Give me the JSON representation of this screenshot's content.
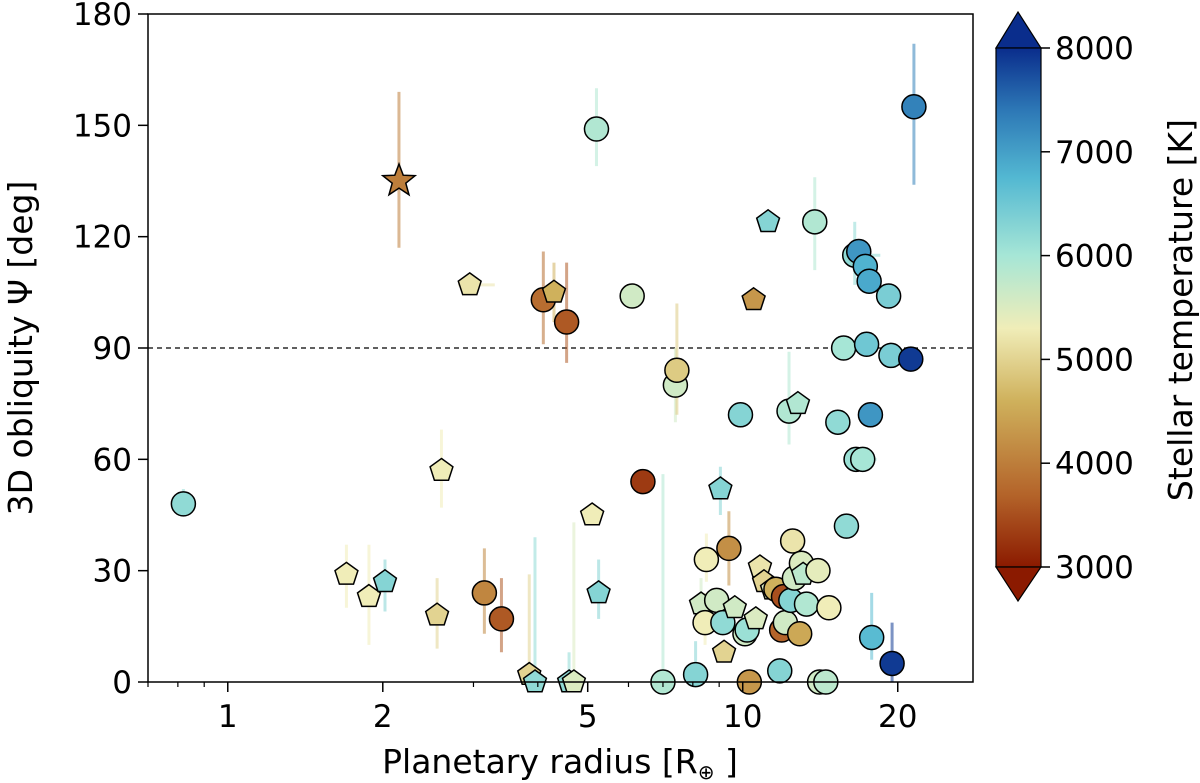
{
  "chart_data": {
    "type": "scatter",
    "title": "",
    "xlabel": "Planetary radius [R⊕]",
    "ylabel": "3D obliquity Ψ [deg]",
    "xscale": "log",
    "xlim": [
      0.7,
      28
    ],
    "ylim": [
      0,
      180
    ],
    "x_ticks": [
      1,
      2,
      5,
      10,
      20
    ],
    "x_tick_labels": [
      "1",
      "2",
      "5",
      "10",
      "20"
    ],
    "y_ticks": [
      0,
      30,
      60,
      90,
      120,
      150,
      180
    ],
    "y_tick_labels": [
      "0",
      "30",
      "60",
      "90",
      "120",
      "150",
      "180"
    ],
    "reference_line": {
      "y": 90,
      "style": "dashed"
    },
    "colorbar": {
      "label": "Stellar temperature [K]",
      "min": 3000,
      "max": 8000,
      "ticks": [
        3000,
        4000,
        5000,
        6000,
        7000,
        8000
      ],
      "tick_labels": [
        "3000",
        "4000",
        "5000",
        "6000",
        "7000",
        "8000"
      ],
      "colors": [
        "#8b1a00",
        "#b4642a",
        "#cfb15c",
        "#f0edb8",
        "#a6e6d6",
        "#53b8d2",
        "#2d78b6",
        "#0a2d8c"
      ]
    },
    "marker_legend": {
      "circle": "circle",
      "pentagon": "pentagon",
      "star": "star"
    },
    "points": [
      {
        "x": 0.82,
        "y": 48,
        "t": 6200,
        "m": "circle",
        "ylo": 45,
        "yhi": 52
      },
      {
        "x": 2.15,
        "y": 135,
        "t": 4000,
        "m": "star",
        "ylo": 117,
        "yhi": 159
      },
      {
        "x": 5.2,
        "y": 149,
        "t": 5900,
        "m": "circle",
        "ylo": 139,
        "yhi": 160
      },
      {
        "x": 2.95,
        "y": 107,
        "t": 5200,
        "m": "pentagon",
        "xlo": 2.8,
        "xhi": 3.3
      },
      {
        "x": 4.1,
        "y": 103,
        "t": 3800,
        "m": "circle",
        "ylo": 91,
        "yhi": 116
      },
      {
        "x": 4.3,
        "y": 105,
        "t": 4600,
        "m": "pentagon",
        "ylo": 97,
        "yhi": 113
      },
      {
        "x": 4.55,
        "y": 97,
        "t": 3600,
        "m": "circle",
        "ylo": 86,
        "yhi": 113
      },
      {
        "x": 6.1,
        "y": 104,
        "t": 5600,
        "m": "circle"
      },
      {
        "x": 10.5,
        "y": 103,
        "t": 4300,
        "m": "pentagon"
      },
      {
        "x": 7.4,
        "y": 80,
        "t": 5600,
        "m": "circle",
        "ylo": 70,
        "yhi": 90
      },
      {
        "x": 7.45,
        "y": 84,
        "t": 4900,
        "m": "circle",
        "ylo": 72,
        "yhi": 102
      },
      {
        "x": 2.6,
        "y": 57,
        "t": 5300,
        "m": "pentagon",
        "ylo": 47,
        "yhi": 68
      },
      {
        "x": 6.4,
        "y": 54,
        "t": 3300,
        "m": "circle"
      },
      {
        "x": 5.1,
        "y": 45,
        "t": 5300,
        "m": "pentagon"
      },
      {
        "x": 1.7,
        "y": 29,
        "t": 5300,
        "m": "pentagon",
        "ylo": 20,
        "yhi": 37
      },
      {
        "x": 1.88,
        "y": 23,
        "t": 5300,
        "m": "pentagon",
        "ylo": 10,
        "yhi": 37
      },
      {
        "x": 2.02,
        "y": 27,
        "t": 6300,
        "m": "pentagon",
        "ylo": 19,
        "yhi": 33
      },
      {
        "x": 2.55,
        "y": 18,
        "t": 5000,
        "m": "pentagon",
        "ylo": 9,
        "yhi": 28
      },
      {
        "x": 3.15,
        "y": 24,
        "t": 4100,
        "m": "circle",
        "ylo": 13,
        "yhi": 36
      },
      {
        "x": 3.4,
        "y": 17,
        "t": 3600,
        "m": "circle",
        "ylo": 8,
        "yhi": 28
      },
      {
        "x": 3.85,
        "y": 2,
        "t": 5000,
        "m": "pentagon",
        "ylo": 0,
        "yhi": 29
      },
      {
        "x": 3.95,
        "y": 0,
        "t": 6200,
        "m": "pentagon",
        "ylo": 0,
        "yhi": 39
      },
      {
        "x": 4.6,
        "y": 0,
        "t": 6200,
        "m": "pentagon",
        "ylo": 0,
        "yhi": 8
      },
      {
        "x": 4.7,
        "y": 0,
        "t": 5500,
        "m": "pentagon",
        "ylo": 0,
        "yhi": 43
      },
      {
        "x": 5.25,
        "y": 24,
        "t": 6300,
        "m": "pentagon",
        "ylo": 17,
        "yhi": 33
      },
      {
        "x": 7.0,
        "y": 0,
        "t": 5900,
        "m": "circle",
        "ylo": 0,
        "yhi": 56
      },
      {
        "x": 8.1,
        "y": 2,
        "t": 6300,
        "m": "circle",
        "ylo": 0,
        "yhi": 11
      },
      {
        "x": 8.3,
        "y": 21,
        "t": 5600,
        "m": "pentagon",
        "ylo": 14,
        "yhi": 28
      },
      {
        "x": 8.45,
        "y": 16,
        "t": 5300,
        "m": "circle",
        "ylo": 10,
        "yhi": 24
      },
      {
        "x": 8.5,
        "y": 33,
        "t": 5300,
        "m": "circle",
        "ylo": 27,
        "yhi": 40
      },
      {
        "x": 8.9,
        "y": 22,
        "t": 5600,
        "m": "circle"
      },
      {
        "x": 9.05,
        "y": 52,
        "t": 6300,
        "m": "pentagon",
        "ylo": 45,
        "yhi": 58
      },
      {
        "x": 9.15,
        "y": 16,
        "t": 6200,
        "m": "circle"
      },
      {
        "x": 9.2,
        "y": 8,
        "t": 5000,
        "m": "pentagon"
      },
      {
        "x": 9.4,
        "y": 36,
        "t": 4200,
        "m": "circle",
        "ylo": 26,
        "yhi": 46
      },
      {
        "x": 9.65,
        "y": 20,
        "t": 5600,
        "m": "pentagon"
      },
      {
        "x": 9.9,
        "y": 72,
        "t": 6300,
        "m": "circle"
      },
      {
        "x": 10.1,
        "y": 13,
        "t": 5600,
        "m": "circle"
      },
      {
        "x": 10.2,
        "y": 14,
        "t": 6100,
        "m": "circle"
      },
      {
        "x": 10.3,
        "y": 0,
        "t": 4300,
        "m": "circle"
      },
      {
        "x": 10.6,
        "y": 17,
        "t": 5500,
        "m": "pentagon"
      },
      {
        "x": 10.8,
        "y": 31,
        "t": 5200,
        "m": "pentagon"
      },
      {
        "x": 11.0,
        "y": 27,
        "t": 5000,
        "m": "pentagon"
      },
      {
        "x": 11.2,
        "y": 124,
        "t": 6300,
        "m": "pentagon"
      },
      {
        "x": 11.4,
        "y": 25,
        "t": 5500,
        "m": "pentagon"
      },
      {
        "x": 11.6,
        "y": 25,
        "t": 4600,
        "m": "circle"
      },
      {
        "x": 11.8,
        "y": 3,
        "t": 6300,
        "m": "circle"
      },
      {
        "x": 11.9,
        "y": 14,
        "t": 3700,
        "m": "circle"
      },
      {
        "x": 12.0,
        "y": 23,
        "t": 3500,
        "m": "circle"
      },
      {
        "x": 12.1,
        "y": 16,
        "t": 5600,
        "m": "circle"
      },
      {
        "x": 12.3,
        "y": 73,
        "t": 5900,
        "m": "circle",
        "ylo": 64,
        "yhi": 89
      },
      {
        "x": 12.4,
        "y": 22,
        "t": 6300,
        "m": "circle"
      },
      {
        "x": 12.5,
        "y": 38,
        "t": 5200,
        "m": "circle"
      },
      {
        "x": 12.6,
        "y": 28,
        "t": 5600,
        "m": "circle"
      },
      {
        "x": 12.8,
        "y": 75,
        "t": 5900,
        "m": "pentagon"
      },
      {
        "x": 12.9,
        "y": 13,
        "t": 4500,
        "m": "circle"
      },
      {
        "x": 13.0,
        "y": 32,
        "t": 5500,
        "m": "circle"
      },
      {
        "x": 13.1,
        "y": 29,
        "t": 5800,
        "m": "pentagon"
      },
      {
        "x": 13.3,
        "y": 21,
        "t": 5900,
        "m": "circle"
      },
      {
        "x": 13.8,
        "y": 124,
        "t": 5900,
        "m": "circle",
        "ylo": 111,
        "yhi": 136
      },
      {
        "x": 14.0,
        "y": 30,
        "t": 5400,
        "m": "circle"
      },
      {
        "x": 14.1,
        "y": 0,
        "t": 5600,
        "m": "circle"
      },
      {
        "x": 14.5,
        "y": 0,
        "t": 5800,
        "m": "circle"
      },
      {
        "x": 14.7,
        "y": 20,
        "t": 5300,
        "m": "circle"
      },
      {
        "x": 15.3,
        "y": 70,
        "t": 6200,
        "m": "circle"
      },
      {
        "x": 15.7,
        "y": 90,
        "t": 6000,
        "m": "circle"
      },
      {
        "x": 15.9,
        "y": 42,
        "t": 6200,
        "m": "circle"
      },
      {
        "x": 16.5,
        "y": 115,
        "t": 6200,
        "m": "circle",
        "xlo": 15.6,
        "xhi": 18.5,
        "ylo": 107,
        "yhi": 124
      },
      {
        "x": 16.6,
        "y": 60,
        "t": 6100,
        "m": "circle"
      },
      {
        "x": 16.8,
        "y": 116,
        "t": 7100,
        "m": "circle"
      },
      {
        "x": 17.1,
        "y": 60,
        "t": 6000,
        "m": "circle",
        "xlo": 16.0,
        "xhi": 18.2
      },
      {
        "x": 17.3,
        "y": 112,
        "t": 6800,
        "m": "circle"
      },
      {
        "x": 17.4,
        "y": 91,
        "t": 6500,
        "m": "circle"
      },
      {
        "x": 17.6,
        "y": 108,
        "t": 6900,
        "m": "circle"
      },
      {
        "x": 17.7,
        "y": 72,
        "t": 7100,
        "m": "circle"
      },
      {
        "x": 17.8,
        "y": 12,
        "t": 6700,
        "m": "circle",
        "ylo": 6,
        "yhi": 24
      },
      {
        "x": 19.2,
        "y": 104,
        "t": 6400,
        "m": "circle"
      },
      {
        "x": 19.4,
        "y": 88,
        "t": 6400,
        "m": "circle"
      },
      {
        "x": 19.5,
        "y": 5,
        "t": 7900,
        "m": "circle",
        "ylo": 0,
        "yhi": 16
      },
      {
        "x": 21.2,
        "y": 87,
        "t": 7900,
        "m": "circle"
      },
      {
        "x": 21.5,
        "y": 155,
        "t": 7300,
        "m": "circle",
        "ylo": 134,
        "yhi": 172
      }
    ]
  }
}
